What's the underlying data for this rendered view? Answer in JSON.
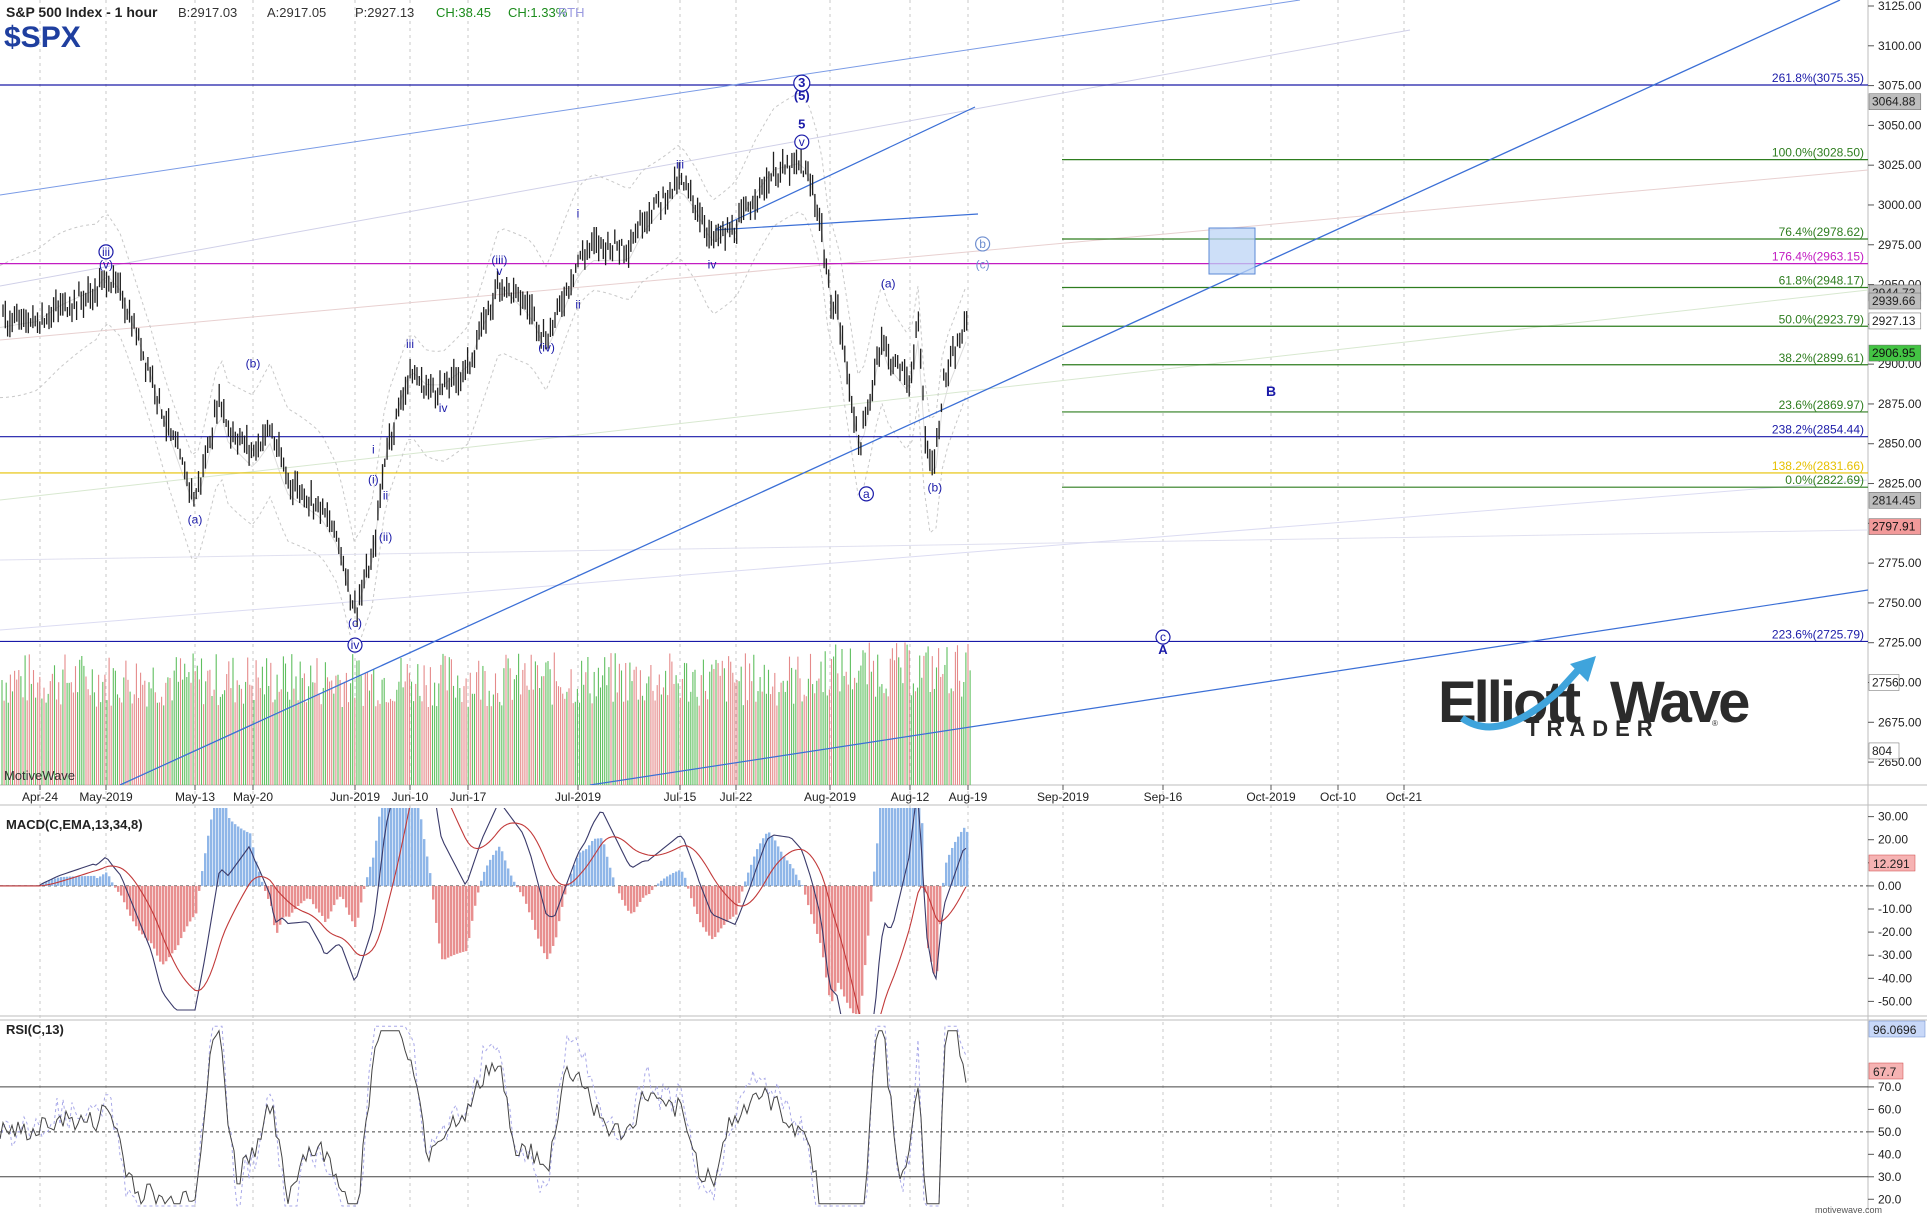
{
  "header": {
    "title": "S&P 500 Index - 1 hour",
    "bid": "B:2917.03",
    "ask": "A:2917.05",
    "price": "P:2927.13",
    "change": "CH:38.45",
    "change_pct": "CH:1.33%",
    "session": "RTH",
    "symbol": "$SPX"
  },
  "watermark": "MotiveWave",
  "footer_site": "motivewave.com",
  "logo": {
    "word1": "Elliott",
    "word2": "Wave",
    "word3": "TRADER",
    "mark": "®"
  },
  "colors": {
    "up_bar": "#1f1f1f",
    "fib_green": "#2e7d1f",
    "fib_blue": "#1a1aa8",
    "fib_magenta": "#c21cc2",
    "fib_yellow": "#e6c000",
    "vol_up": "#5fbf5f",
    "vol_down": "#e58a8a",
    "trendline": "#3b6fd6"
  },
  "chart_data": [
    {
      "type": "candlestick",
      "title": "S&P 500 Index - 1 hour",
      "ylim": [
        2640,
        3125
      ],
      "yticks": [
        "3125.00",
        "3100.00",
        "3075.00",
        "3050.00",
        "3025.00",
        "3000.00",
        "2975.00",
        "2950.00",
        "2925.00",
        "2900.00",
        "2875.00",
        "2850.00",
        "2825.00",
        "2800.00",
        "2775.00",
        "2750.00",
        "2725.00",
        "2700.00",
        "2675.00",
        "2650.00"
      ],
      "xticks": [
        "Apr-24",
        "May-2019",
        "May-13",
        "May-20",
        "Jun-2019",
        "Jun-10",
        "Jun-17",
        "Jul-2019",
        "Jul-15",
        "Jul-22",
        "Aug-2019",
        "Aug-12",
        "Aug-19",
        "Sep-2019",
        "Sep-16",
        "Oct-2019",
        "Oct-10",
        "Oct-21"
      ],
      "path": [
        [
          "Apr-24",
          2928
        ],
        [
          "Apr-26",
          2935
        ],
        [
          "Apr-30",
          2945
        ],
        [
          "May-2019",
          2955
        ],
        [
          "May-03",
          2945
        ],
        [
          "May-07",
          2895
        ],
        [
          "May-09",
          2865
        ],
        [
          "May-13",
          2815
        ],
        [
          "May-14",
          2835
        ],
        [
          "May-16",
          2880
        ],
        [
          "May-17",
          2860
        ],
        [
          "May-20",
          2845
        ],
        [
          "May-22",
          2860
        ],
        [
          "May-24",
          2828
        ],
        [
          "May-28",
          2810
        ],
        [
          "May-30",
          2790
        ],
        [
          "Jun-2019",
          2745
        ],
        [
          "Jun-04",
          2780
        ],
        [
          "Jun-06",
          2845
        ],
        [
          "Jun-10",
          2895
        ],
        [
          "Jun-12",
          2885
        ],
        [
          "Jun-14",
          2885
        ],
        [
          "Jun-17",
          2898
        ],
        [
          "Jun-19",
          2925
        ],
        [
          "Jun-21",
          2952
        ],
        [
          "Jun-25",
          2935
        ],
        [
          "Jun-27",
          2915
        ],
        [
          "Jul-2019",
          2965
        ],
        [
          "Jul-03",
          2975
        ],
        [
          "Jul-08",
          2975
        ],
        [
          "Jul-10",
          2992
        ],
        [
          "Jul-15",
          3015
        ],
        [
          "Jul-17",
          3000
        ],
        [
          "Jul-19",
          2978
        ],
        [
          "Jul-22",
          2985
        ],
        [
          "Jul-24",
          3005
        ],
        [
          "Jul-26",
          3020
        ],
        [
          "Jul-29",
          3025
        ],
        [
          "Jul-30",
          3012
        ],
        [
          "Jul-31",
          2990
        ],
        [
          "Aug-2019",
          2940
        ],
        [
          "Aug-02",
          2935
        ],
        [
          "Aug-05",
          2848
        ],
        [
          "Aug-06",
          2865
        ],
        [
          "Aug-08",
          2918
        ],
        [
          "Aug-09",
          2905
        ],
        [
          "Aug-12",
          2890
        ],
        [
          "Aug-13",
          2925
        ],
        [
          "Aug-14",
          2845
        ],
        [
          "Aug-15",
          2838
        ],
        [
          "Aug-16",
          2888
        ],
        [
          "Aug-19",
          2927
        ]
      ],
      "levels": [
        {
          "label": "261.8%(3075.35)",
          "value": 3075.35,
          "color": "blue"
        },
        {
          "label": "100.0%(3028.50)",
          "value": 3028.5,
          "color": "green"
        },
        {
          "label": "76.4%(2978.62)",
          "value": 2978.62,
          "color": "green"
        },
        {
          "label": "176.4%(2963.15)",
          "value": 2963.15,
          "color": "magenta"
        },
        {
          "label": "61.8%(2948.17)",
          "value": 2948.17,
          "color": "green"
        },
        {
          "label": "50.0%(2923.79)",
          "value": 2923.79,
          "color": "green"
        },
        {
          "label": "38.2%(2899.61)",
          "value": 2899.61,
          "color": "green"
        },
        {
          "label": "23.6%(2869.97)",
          "value": 2869.97,
          "color": "green"
        },
        {
          "label": "238.2%(2854.44)",
          "value": 2854.44,
          "color": "blue"
        },
        {
          "label": "138.2%(2831.66)",
          "value": 2831.66,
          "color": "yellow"
        },
        {
          "label": "0.0%(2822.69)",
          "value": 2822.69,
          "color": "green"
        },
        {
          "label": "223.6%(2725.79)",
          "value": 2725.79,
          "color": "blue"
        }
      ],
      "price_tags": [
        {
          "label": "3064.88",
          "value": 3064.88,
          "style": "gray"
        },
        {
          "label": "2944.73",
          "value": 2944.73,
          "style": "gray"
        },
        {
          "label": "2939.66",
          "value": 2939.66,
          "style": "gray"
        },
        {
          "label": "2927.13",
          "value": 2927.13,
          "style": "white"
        },
        {
          "label": "2906.95",
          "value": 2906.95,
          "style": "green"
        },
        {
          "label": "2814.45",
          "value": 2814.45,
          "style": "gray"
        },
        {
          "label": "2797.91",
          "value": 2797.91,
          "style": "red"
        },
        {
          "label": "2756",
          "value": 2700,
          "style": "white"
        },
        {
          "label": "804",
          "value": 2657,
          "style": "white"
        }
      ],
      "wave_labels": [
        {
          "t": "3",
          "d": "Jul-29",
          "v": 3074,
          "circle": true,
          "bold": true
        },
        {
          "t": "(5)",
          "d": "Jul-29",
          "v": 3066,
          "bold": true
        },
        {
          "t": "5",
          "d": "Jul-29",
          "v": 3048,
          "bold": true
        },
        {
          "t": "v",
          "d": "Jul-29",
          "v": 3037,
          "circle": true
        },
        {
          "t": "iii",
          "d": "Jul-15",
          "v": 3023
        },
        {
          "t": "iv",
          "d": "Jul-19",
          "v": 2960
        },
        {
          "t": "i",
          "d": "Jul-2019",
          "v": 2992
        },
        {
          "t": "ii",
          "d": "Jul-2019",
          "v": 2935
        },
        {
          "t": "(iii)",
          "d": "Jun-21",
          "v": 2963
        },
        {
          "t": "v",
          "d": "Jun-21",
          "v": 2956
        },
        {
          "t": "(iv)",
          "d": "Jun-27",
          "v": 2908
        },
        {
          "t": "iii",
          "d": "Jun-10",
          "v": 2910
        },
        {
          "t": "iv",
          "d": "Jun-14",
          "v": 2870
        },
        {
          "t": "i",
          "d": "Jun-04",
          "v": 2844
        },
        {
          "t": "(i)",
          "d": "Jun-04",
          "v": 2825
        },
        {
          "t": "ii",
          "d": "Jun-06",
          "v": 2815
        },
        {
          "t": "(ii)",
          "d": "Jun-06",
          "v": 2789
        },
        {
          "t": "(c)",
          "d": "Jun-2019",
          "v": 2735
        },
        {
          "t": "iv",
          "d": "Jun-2019",
          "v": 2721,
          "circle": true
        },
        {
          "t": "iii",
          "d": "May-2019",
          "v": 2968,
          "circle": true
        },
        {
          "t": "(v)",
          "d": "May-2019",
          "v": 2960
        },
        {
          "t": "(a)",
          "d": "May-13",
          "v": 2800
        },
        {
          "t": "(b)",
          "d": "May-20",
          "v": 2898
        },
        {
          "t": "(a)",
          "d": "Aug-09",
          "v": 2948
        },
        {
          "t": "a",
          "d": "Aug-06",
          "v": 2816,
          "circle": true
        },
        {
          "t": "(b)",
          "d": "Aug-15",
          "v": 2820
        },
        {
          "t": "b",
          "d": "Aug-21",
          "v": 2973,
          "circle": true,
          "light": true
        },
        {
          "t": "(c)",
          "d": "Aug-21",
          "v": 2960,
          "light": true
        },
        {
          "t": "B",
          "d": "Oct-2019",
          "v": 2880,
          "bold": true,
          "big": true
        },
        {
          "t": "c",
          "d": "Sep-16",
          "v": 2726,
          "circle": true
        },
        {
          "t": "A",
          "d": "Sep-16",
          "v": 2718,
          "bold": true
        }
      ]
    },
    {
      "type": "line",
      "title": "MACD(C,EMA,13,34,8)",
      "ylim": [
        -52,
        32
      ],
      "yticks": [
        "30.00",
        "20.00",
        "10.00",
        "0.00",
        "-10.00",
        "-20.00",
        "-30.00",
        "-40.00",
        "-50.00"
      ],
      "last_value": "12.291"
    },
    {
      "type": "line",
      "title": "RSI(C,13)",
      "ylim": [
        17,
        98
      ],
      "yticks": [
        "70.0",
        "60.0",
        "50.0",
        "40.0",
        "30.0",
        "20.0"
      ],
      "last_values": [
        "96.0696",
        "67.7"
      ]
    }
  ]
}
